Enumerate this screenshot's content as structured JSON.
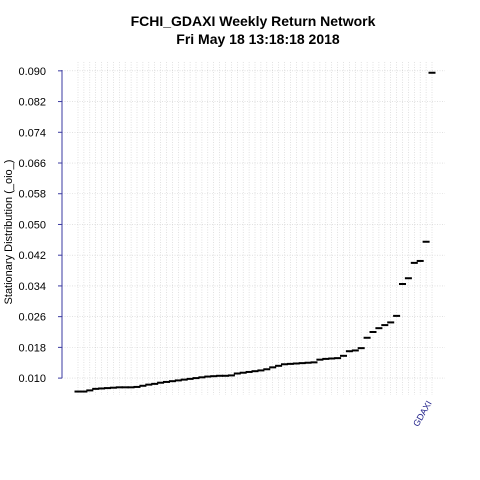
{
  "chart_data": {
    "type": "scatter",
    "title": "FCHI_GDAXI  Weekly Return Network",
    "subtitle": "Fri May 18 13:18:18 2018",
    "y_label": "Stationary Distribution (_oio_)",
    "categories": [
      null,
      null,
      null,
      null,
      null,
      null,
      null,
      null,
      null,
      null,
      null,
      null,
      null,
      null,
      null,
      null,
      null,
      null,
      null,
      null,
      null,
      null,
      null,
      null,
      null,
      null,
      null,
      null,
      null,
      null,
      null,
      null,
      null,
      null,
      null,
      null,
      null,
      null,
      null,
      null,
      null,
      null,
      null,
      null,
      null,
      null,
      null,
      null,
      null,
      null,
      null,
      null,
      null,
      null,
      null,
      null,
      null,
      null,
      null,
      null,
      "GDAXI"
    ],
    "values": [
      0.0065,
      0.0065,
      0.0068,
      0.0072,
      0.0073,
      0.0074,
      0.0075,
      0.0076,
      0.0076,
      0.0076,
      0.0077,
      0.008,
      0.0083,
      0.0085,
      0.0088,
      0.009,
      0.0092,
      0.0094,
      0.0096,
      0.0098,
      0.01,
      0.0102,
      0.0104,
      0.0105,
      0.0106,
      0.0106,
      0.0107,
      0.0112,
      0.0114,
      0.0116,
      0.0118,
      0.012,
      0.0123,
      0.0128,
      0.0132,
      0.0136,
      0.0137,
      0.0138,
      0.0139,
      0.014,
      0.0141,
      0.0148,
      0.015,
      0.0151,
      0.0152,
      0.0158,
      0.017,
      0.0172,
      0.0178,
      0.0205,
      0.022,
      0.023,
      0.0238,
      0.0245,
      0.0262,
      0.0345,
      0.036,
      0.04,
      0.0405,
      0.0455,
      0.0895
    ],
    "color": "#000000",
    "ylim": [
      0.0056,
      0.0923
    ],
    "yticks": [
      {
        "value": 0.01,
        "label": "0.010"
      },
      {
        "value": 0.018,
        "label": "0.018"
      },
      {
        "value": 0.026,
        "label": "0.026"
      },
      {
        "value": 0.034,
        "label": "0.034"
      },
      {
        "value": 0.042,
        "label": "0.042"
      },
      {
        "value": 0.05,
        "label": "0.050"
      },
      {
        "value": 0.058,
        "label": "0.058"
      },
      {
        "value": 0.066,
        "label": "0.066"
      },
      {
        "value": 0.074,
        "label": "0.074"
      },
      {
        "value": 0.082,
        "label": "0.082"
      },
      {
        "value": 0.09,
        "label": "0.090"
      }
    ],
    "grid": true
  }
}
